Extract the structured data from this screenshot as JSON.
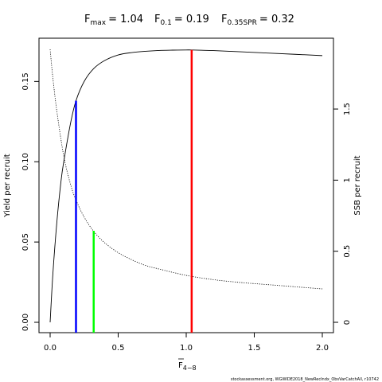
{
  "chart_data": {
    "type": "line",
    "title": {
      "fmax_label": "F",
      "fmax_sub": "max",
      "fmax_value": "= 1.04",
      "f01_label": "F",
      "f01_sub": "0.1",
      "f01_value": "= 0.19",
      "f35_label": "F",
      "f35_sub": "0.35SPR",
      "f35_value": "= 0.32"
    },
    "xlabel": {
      "main": "F",
      "sub": "4−8"
    },
    "ylabel_left": "Yield per recruit",
    "ylabel_right": "SSB per recruit",
    "xlim": [
      0,
      2.0
    ],
    "ylim_left": [
      0,
      0.17
    ],
    "ylim_right": [
      0,
      1.92
    ],
    "x_ticks": [
      {
        "value": 0,
        "label": "0.0"
      },
      {
        "value": 0.5,
        "label": "0.5"
      },
      {
        "value": 1.0,
        "label": "1.0"
      },
      {
        "value": 1.5,
        "label": "1.5"
      },
      {
        "value": 2.0,
        "label": "2.0"
      }
    ],
    "y_left_ticks": [
      {
        "value": 0,
        "label": "0.00"
      },
      {
        "value": 0.05,
        "label": "0.05"
      },
      {
        "value": 0.1,
        "label": "0.10"
      },
      {
        "value": 0.15,
        "label": "0.15"
      }
    ],
    "y_right_ticks": [
      {
        "value": 0,
        "label": "0"
      },
      {
        "value": 0.5,
        "label": "0.5"
      },
      {
        "value": 1.0,
        "label": "1"
      },
      {
        "value": 1.5,
        "label": "1.5"
      }
    ],
    "series": [
      {
        "axis": "left",
        "style": "solid",
        "color": "#000000",
        "x": [
          0,
          0.02,
          0.05,
          0.08,
          0.1,
          0.15,
          0.19,
          0.25,
          0.32,
          0.4,
          0.5,
          0.6,
          0.7,
          0.8,
          0.9,
          1.0,
          1.04,
          1.2,
          1.4,
          1.6,
          1.8,
          2.0
        ],
        "values": [
          0,
          0.03,
          0.063,
          0.088,
          0.1,
          0.124,
          0.138,
          0.15,
          0.158,
          0.163,
          0.1665,
          0.168,
          0.1688,
          0.1693,
          0.1695,
          0.1696,
          0.1696,
          0.1692,
          0.1685,
          0.1677,
          0.1669,
          0.1661
        ]
      },
      {
        "axis": "right",
        "style": "dotted",
        "color": "#000000",
        "x": [
          0,
          0.02,
          0.05,
          0.1,
          0.15,
          0.19,
          0.25,
          0.32,
          0.4,
          0.5,
          0.6,
          0.7,
          0.8,
          1.0,
          1.2,
          1.4,
          1.6,
          1.8,
          2.0
        ],
        "values": [
          1.92,
          1.72,
          1.48,
          1.17,
          0.97,
          0.86,
          0.74,
          0.64,
          0.56,
          0.49,
          0.44,
          0.4,
          0.375,
          0.33,
          0.3,
          0.28,
          0.265,
          0.25,
          0.235
        ]
      }
    ],
    "reference_lines": [
      {
        "name": "Fmax",
        "x": 1.04,
        "y": 0.1696,
        "color": "#ff0000"
      },
      {
        "name": "F0.1",
        "x": 0.19,
        "y": 0.138,
        "color": "#0000ff"
      },
      {
        "name": "F0.35SPR",
        "x": 0.32,
        "y": 0.057,
        "color": "#00ff00"
      }
    ],
    "grid": false
  },
  "footer": "stockassessment.org, WGWIDE2018_NewRecIndx_ObsVarCatchAll, r10742"
}
